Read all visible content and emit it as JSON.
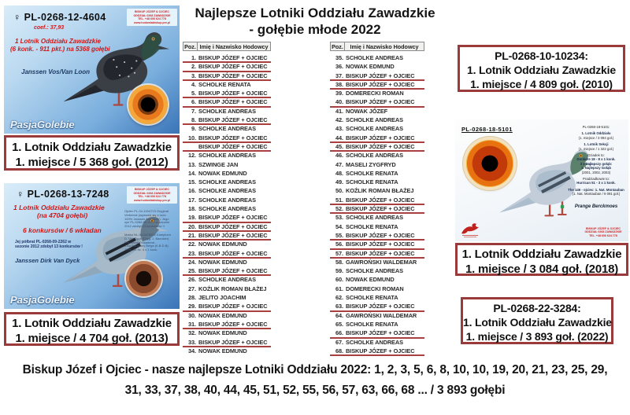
{
  "title": {
    "line1": "Najlepsze Lotniki Oddziału Zawadzkie",
    "line2": "- gołębie młode 2022"
  },
  "colors": {
    "accent_red": "#9b3a3a",
    "underline_red": "#a84040",
    "red_text": "#d01818",
    "card_blue_top": "#d9ecf9",
    "card_blue_bottom": "#3a74b8"
  },
  "table_header": {
    "pos": "Poz.",
    "name": "Imię i Nazwisko Hodowcy"
  },
  "tables": {
    "left": {
      "rows": [
        [
          "1.",
          "BISKUP JÓZEF + OJCIEC",
          1
        ],
        [
          "2.",
          "BISKUP JÓZEF + OJCIEC",
          1
        ],
        [
          "3.",
          "BISKUP JÓZEF + OJCIEC",
          1
        ],
        [
          "4.",
          "SCHOLKE RENATA",
          0
        ],
        [
          "5.",
          "BISKUP JÓZEF + OJCIEC",
          1
        ],
        [
          "6.",
          "BISKUP JÓZEF + OJCIEC",
          1
        ],
        [
          "7.",
          "SCHOLKE ANDREAS",
          0
        ],
        [
          "8.",
          "BISKUP JÓZEF + OJCIEC",
          1
        ],
        [
          "9.",
          "SCHOLKE ANDREAS",
          0
        ],
        [
          "10.",
          "BISKUP JÓZEF + OJCIEC",
          1
        ],
        [
          "",
          "BISKUP JÓZEF + OJCIEC",
          1
        ],
        [
          "12.",
          "SCHOLKE ANDREAS",
          0
        ],
        [
          "13.",
          "SZWINGE JAN",
          0
        ],
        [
          "14.",
          "NOWAK EDMUND",
          0
        ],
        [
          "15.",
          "SCHOLKE ANDREAS",
          0
        ],
        [
          "16.",
          "SCHOLKE ANDREAS",
          0
        ],
        [
          "17.",
          "SCHOLKE ANDREAS",
          0
        ],
        [
          "18.",
          "SCHOLKE ANDREAS",
          0
        ],
        [
          "19.",
          "BISKUP JÓZEF + OJCIEC",
          1
        ],
        [
          "20.",
          "BISKUP JÓZEF + OJCIEC",
          1
        ],
        [
          "21.",
          "BISKUP JÓZEF + OJCIEC",
          1
        ],
        [
          "22.",
          "NOWAK EDMUND",
          0
        ],
        [
          "23.",
          "BISKUP JÓZEF + OJCIEC",
          1
        ],
        [
          "24.",
          "NOWAK EDMUND",
          0
        ],
        [
          "25.",
          "BISKUP JÓZEF + OJCIEC",
          1
        ],
        [
          "26.",
          "SCHOLKE ANDREAS",
          0
        ],
        [
          "27.",
          "KOŹLIK ROMAN BŁAŻEJ",
          0
        ],
        [
          "28.",
          "JELITO JOACHIM",
          0
        ],
        [
          "29.",
          "BISKUP JÓZEF + OJCIEC",
          1
        ],
        [
          "30.",
          "NOWAK EDMUND",
          0
        ],
        [
          "31.",
          "BISKUP JÓZEF + OJCIEC",
          1
        ],
        [
          "32.",
          "NOWAK EDMUND",
          0
        ],
        [
          "33.",
          "BISKUP JÓZEF + OJCIEC",
          1
        ],
        [
          "34.",
          "NOWAK EDMUND",
          0
        ]
      ]
    },
    "right": {
      "rows": [
        [
          "35.",
          "SCHOLKE ANDREAS",
          0
        ],
        [
          "36.",
          "NOWAK EDMUND",
          0
        ],
        [
          "37.",
          "BISKUP JÓZEF + OJCIEC",
          1
        ],
        [
          "38.",
          "BISKUP JÓZEF + OJCIEC",
          1
        ],
        [
          "39.",
          "DOMERECKI ROMAN",
          0
        ],
        [
          "40.",
          "BISKUP JÓZEF + OJCIEC",
          1
        ],
        [
          "41.",
          "NOWAK JÓZEF",
          0
        ],
        [
          "42.",
          "SCHOLKE ANDREAS",
          0
        ],
        [
          "43.",
          "SCHOLKE ANDREAS",
          0
        ],
        [
          "44.",
          "BISKUP JÓZEF + OJCIEC",
          1
        ],
        [
          "45.",
          "BISKUP JÓZEF + OJCIEC",
          1
        ],
        [
          "46.",
          "SCHOLKE ANDREAS",
          0
        ],
        [
          "47.",
          "MASELI ZYGFRYD",
          0
        ],
        [
          "48.",
          "SCHOLKE RENATA",
          0
        ],
        [
          "49.",
          "SCHOLKE RENATA",
          0
        ],
        [
          "50.",
          "KOŹLIK ROMAN BŁAŻEJ",
          0
        ],
        [
          "51.",
          "BISKUP JÓZEF + OJCIEC",
          1
        ],
        [
          "52.",
          "BISKUP JÓZEF + OJCIEC",
          1
        ],
        [
          "53.",
          "SCHOLKE ANDREAS",
          0
        ],
        [
          "54.",
          "SCHOLKE RENATA",
          0
        ],
        [
          "55.",
          "BISKUP JÓZEF + OJCIEC",
          1
        ],
        [
          "56.",
          "BISKUP JÓZEF + OJCIEC",
          1
        ],
        [
          "57.",
          "BISKUP JÓZEF + OJCIEC",
          1
        ],
        [
          "58.",
          "GAWROŃSKI WALDEMAR",
          0
        ],
        [
          "59.",
          "SCHOLKE ANDREAS",
          0
        ],
        [
          "60.",
          "NOWAK EDMUND",
          0
        ],
        [
          "61.",
          "DOMERECKI ROMAN",
          0
        ],
        [
          "62.",
          "SCHOLKE RENATA",
          0
        ],
        [
          "63.",
          "BISKUP JÓZEF + OJCIEC",
          1
        ],
        [
          "64.",
          "GAWROŃSKI WALDEMAR",
          0
        ],
        [
          "65.",
          "SCHOLKE RENATA",
          0
        ],
        [
          "66.",
          "BISKUP JÓZEF + OJCIEC",
          1
        ],
        [
          "67.",
          "SCHOLKE ANDREAS",
          0
        ],
        [
          "68.",
          "BISKUP JÓZEF + OJCIEC",
          1
        ]
      ]
    }
  },
  "cards": {
    "top_left": {
      "sex": "♀",
      "ring": "PL-0268-12-4604",
      "coef": "coef.: 37,93",
      "ach1": "1 Lotnik Oddziału Zawadzkie",
      "ach2": "(6 konk. - 911 pkt.) na 5368 gołębi",
      "strain": "Janssen Vos/Van Loon",
      "watermark": "PasjaGolebie",
      "contact": "BISKUP JÓZEF & OJCIEC\nODDZIAŁ 0268 ZAWADZKIE\nTEL. +48 606 624 778\nwww.hodowlabiskup.prv.pl",
      "caption1": "1. Lotnik Oddziału Zawadzkie",
      "caption2": "1. miejsce / 5 368 goł. (2012)"
    },
    "bottom_left": {
      "sex": "♀",
      "ring": "PL-0268-13-7248",
      "ach1": "1 Lotnik Oddziału Zawadzkie",
      "ach2": "(na 4704 gołębi)",
      "ach3": "6 konkursów / 6 wkładan",
      "note": "Jej półbrat PL-0268-09-2262 w\nsezonie 2012 zdobył 13 konkursów !",
      "strain": "Janssen Dirk Van Dyck",
      "watermark": "PasjaGolebie",
      "contact": "BISKUP JÓZEF & OJCIEC\nODDZIAŁ 0268 ZAWADZKIE\nTEL. +48 606 624 778\nwww.hodowlabiskup.prv.pl",
      "fine_print1": "Ojciec PL-04-1004723 Oryginał\nVerbeeck (wywodzi się z rodu\n100% Janssen Arendonk). Jego\nsyn PL-0268-09-2262 w sezonie\n2012 zdobył 13 konkursów !!",
      "fine_print2": "Matka NL-00-0476202 Kampioen\nD. Van Dyck (Oryg. J. Baeckler)\nPremiandia Kwadend -\nJ.Aa Baradony Belga (K.B.D.B)\n1996. 4x 4c. 4 x 1 konk.",
      "caption1": "1. Lotnik Oddziału Zawadzkie",
      "caption2": "1. miejsce / 4 704 goł. (2013)"
    },
    "right": {
      "ring": "PL-0268-18-5101",
      "pedigree": [
        {
          "t": "PL-0268-18-5101:",
          "c": "n"
        },
        {
          "t": "1. Lotnik Oddziału",
          "c": "b g"
        },
        {
          "t": "(1. miejsce / 3 084 goł.)",
          "c": "n"
        },
        {
          "t": "1. Lotnik Sekcji",
          "c": "b g"
        },
        {
          "t": "(1. miejsce / 1 322 goł.)",
          "c": "n"
        },
        {
          "t": "Dziadek to:",
          "c": "n g"
        },
        {
          "t": "Donkere 18 - 8 x 1 konk.",
          "c": "b"
        },
        {
          "t": "3 x najlepszy gołąb:",
          "c": "b"
        },
        {
          "t": "1. Najlepszy Gołąb",
          "c": "b"
        },
        {
          "t": "(2001, 2002, 2003)",
          "c": "n"
        },
        {
          "t": "Pradziadkowie to:",
          "c": "n g"
        },
        {
          "t": "Hurrican 51 - 3 x 1 konk.",
          "c": "b"
        },
        {
          "t": "The 146 - ojciec: 1. Nat. Montauban",
          "c": "b g"
        },
        {
          "t": "(1. Nat. Montauban / 9 091 goł.)",
          "c": "n"
        },
        {
          "t": "Prange Berckmoes",
          "c": "i"
        }
      ],
      "contact": "BISKUP JÓZEF & OJCIEC\nODDZIAŁ 0268 ZAWADZKIE\nTEL. +48 606 624 778",
      "caption1": "1. Lotnik Oddziału Zawadzkie",
      "caption2": "1. miejsce / 3 084 goł. (2018)"
    }
  },
  "boxes": {
    "b2010": {
      "l1": "PL-0268-10-10234:",
      "l2": "1. Lotnik Oddziału Zawadzkie",
      "l3": "1. miejsce / 4 809 goł. (2010)"
    },
    "b2022": {
      "l1": "PL-0268-22-3284:",
      "l2": "1. Lotnik Oddziału Zawadzkie",
      "l3": "1. miejsce / 3 893 goł. (2022)"
    }
  },
  "footer": {
    "line1": "Biskup Józef i Ojciec - nasze najlepsze Lotniki Oddziału 2022: 1, 2, 3, 5, 6, 8, 10, 10, 19, 20, 21, 23, 25, 29,",
    "line2": "31, 33, 37, 38, 40, 44, 45, 51, 52, 55, 56, 57, 63, 66, 68  ... / 3 893 gołębi"
  }
}
